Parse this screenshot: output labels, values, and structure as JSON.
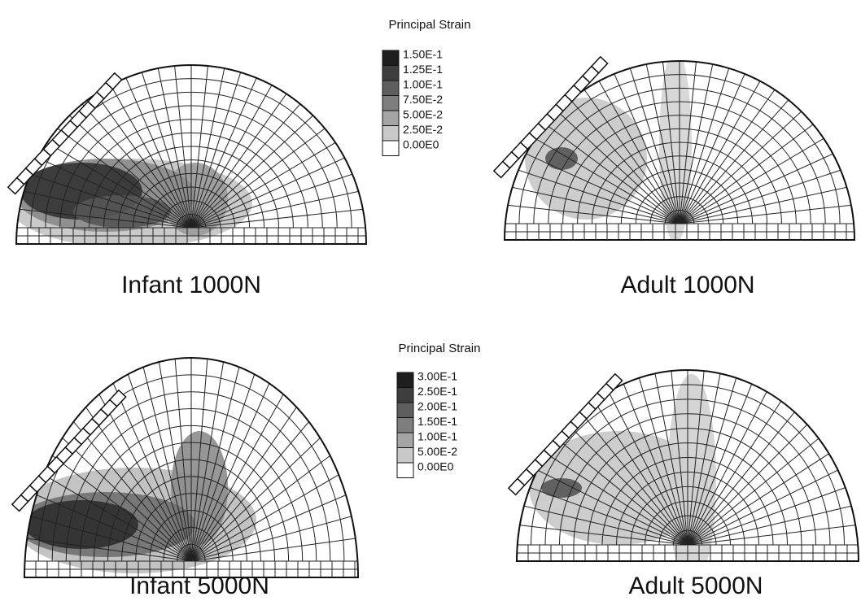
{
  "panels": [
    {
      "label": "Infant 1000N"
    },
    {
      "label": "Adult 1000N"
    },
    {
      "label": "Infant 5000N"
    },
    {
      "label": "Adult 5000N"
    }
  ],
  "legends": [
    {
      "title": "Principal Strain",
      "levels": [
        "1.50E-1",
        "1.25E-1",
        "1.00E-1",
        "7.50E-2",
        "5.00E-2",
        "2.50E-2",
        "0.00E0"
      ]
    },
    {
      "title": "Principal Strain",
      "levels": [
        "3.00E-1",
        "2.50E-1",
        "2.00E-1",
        "1.50E-1",
        "1.00E-1",
        "5.00E-2",
        "0.00E0"
      ]
    }
  ]
}
